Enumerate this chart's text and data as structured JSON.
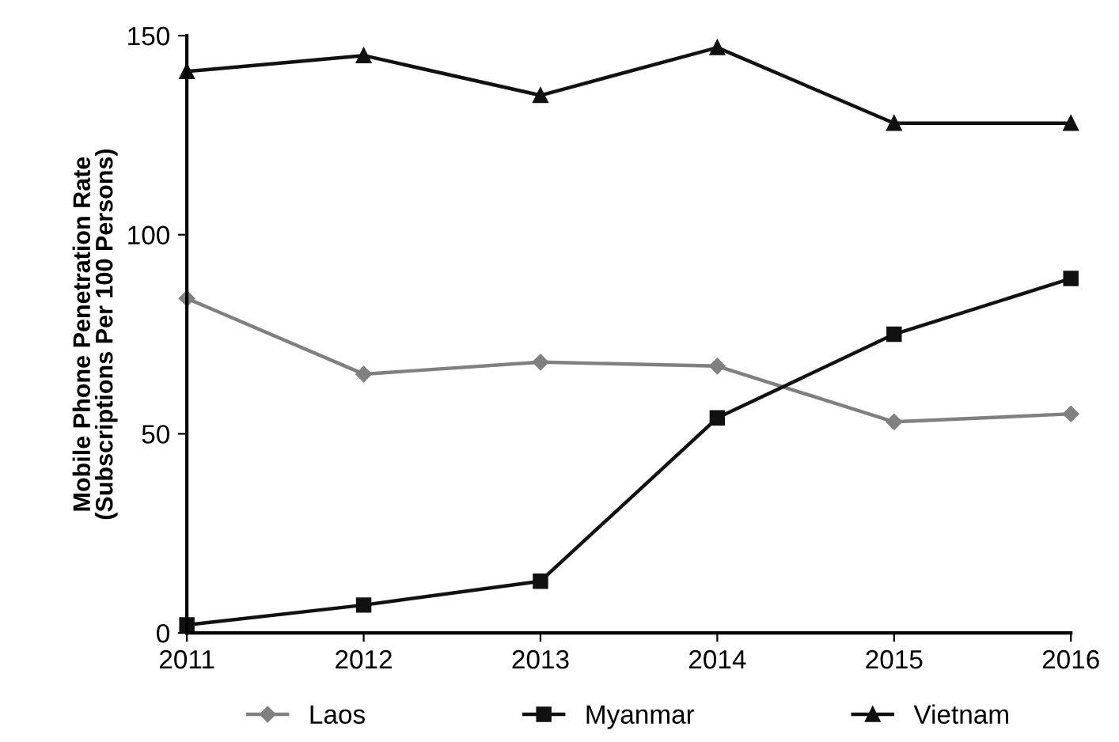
{
  "chart_data": {
    "type": "line",
    "ylabel": "Mobile Phone Penetration Rate\n(Subscriptions Per 100 Persons)",
    "categories": [
      "2011",
      "2012",
      "2013",
      "2014",
      "2015",
      "2016"
    ],
    "series": [
      {
        "name": "Laos",
        "color": "#808080",
        "marker": "diamond",
        "values": [
          84,
          65,
          68,
          67,
          53,
          55
        ]
      },
      {
        "name": "Myanmar",
        "color": "#111111",
        "marker": "square",
        "values": [
          2,
          7,
          13,
          54,
          75,
          89
        ]
      },
      {
        "name": "Vietnam",
        "color": "#111111",
        "marker": "triangle",
        "values": [
          141,
          145,
          135,
          147,
          128,
          128
        ]
      }
    ],
    "ylim": [
      0,
      150
    ],
    "yticks": [
      0,
      50,
      100,
      150
    ],
    "grid": false,
    "legend": "bottom"
  }
}
